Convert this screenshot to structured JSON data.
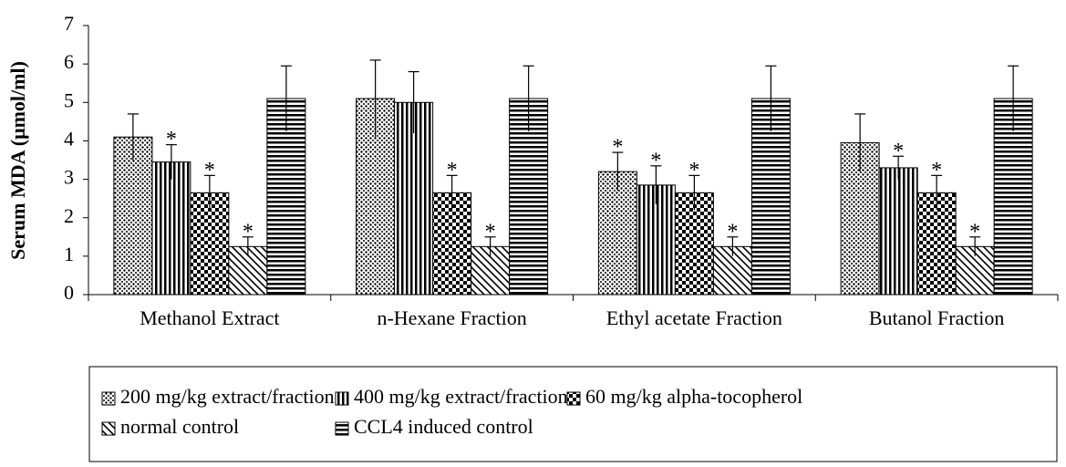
{
  "chart_data": {
    "type": "bar",
    "y_label": "Serum MDA (μmol/ml)",
    "categories": [
      "Methanol Extract",
      "n-Hexane Fraction",
      "Ethyl acetate Fraction",
      "Butanol Fraction"
    ],
    "series": [
      {
        "name": "200 mg/kg extract/fraction",
        "color": "#000000",
        "pattern": "dots",
        "values": [
          4.1,
          5.1,
          3.2,
          3.95
        ],
        "errors": [
          0.6,
          1.0,
          0.5,
          0.75
        ],
        "annotations": [
          null,
          null,
          "*",
          null
        ]
      },
      {
        "name": "400 mg/kg extract/fraction",
        "color": "#000000",
        "pattern": "vertical",
        "values": [
          3.45,
          5.0,
          2.85,
          3.3
        ],
        "errors": [
          0.45,
          0.8,
          0.5,
          0.3
        ],
        "annotations": [
          "*",
          null,
          "*",
          "*"
        ]
      },
      {
        "name": "60 mg/kg alpha-tocopherol",
        "color": "#000000",
        "pattern": "checker",
        "values": [
          2.65,
          2.65,
          2.65,
          2.65
        ],
        "errors": [
          0.45,
          0.45,
          0.45,
          0.45
        ],
        "annotations": [
          "*",
          "*",
          "*",
          "*"
        ]
      },
      {
        "name": "normal control",
        "color": "#000000",
        "pattern": "diagonal",
        "values": [
          1.25,
          1.25,
          1.25,
          1.25
        ],
        "errors": [
          0.25,
          0.25,
          0.25,
          0.25
        ],
        "annotations": [
          "*",
          "*",
          "*",
          "*"
        ]
      },
      {
        "name": "CCL4 induced control",
        "color": "#000000",
        "pattern": "horizontal",
        "values": [
          5.1,
          5.1,
          5.1,
          5.1
        ],
        "errors": [
          0.85,
          0.85,
          0.85,
          0.85
        ],
        "annotations": [
          null,
          null,
          null,
          null
        ]
      }
    ],
    "ylim": [
      0,
      7
    ],
    "yticks": [
      0,
      1,
      2,
      3,
      4,
      5,
      6,
      7
    ],
    "grid": false,
    "legend": "bottom"
  }
}
